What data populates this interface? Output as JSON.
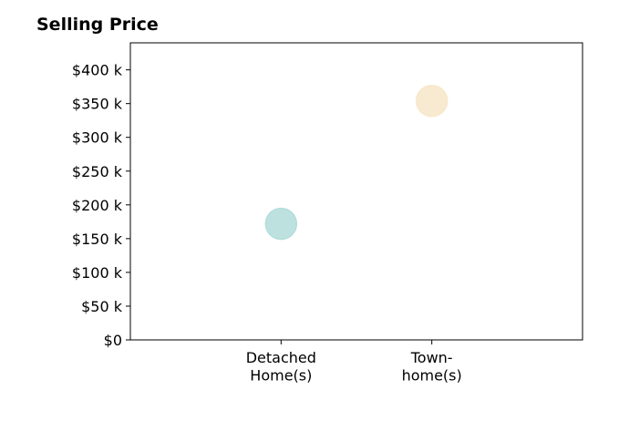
{
  "chart_data": {
    "type": "scatter",
    "title": "Selling Price",
    "xlabel": "",
    "ylabel": "",
    "categories": [
      [
        "Detached",
        "Home(s)"
      ],
      [
        "Town-",
        "home(s)"
      ]
    ],
    "x_range": [
      -1,
      2
    ],
    "ylim": [
      0,
      440000
    ],
    "y_ticks": [
      0,
      50000,
      100000,
      150000,
      200000,
      250000,
      300000,
      350000,
      400000
    ],
    "y_tick_labels": [
      "$0",
      "$50 k",
      "$100 k",
      "$150 k",
      "$200 k",
      "$250 k",
      "$300 k",
      "$350 k",
      "$400 k"
    ],
    "points": [
      {
        "category_index": 0,
        "value": 172000,
        "color": "#b5dedb"
      },
      {
        "category_index": 1,
        "value": 354000,
        "color": "#f7e8cb"
      }
    ],
    "grid": false,
    "legend": "none"
  }
}
